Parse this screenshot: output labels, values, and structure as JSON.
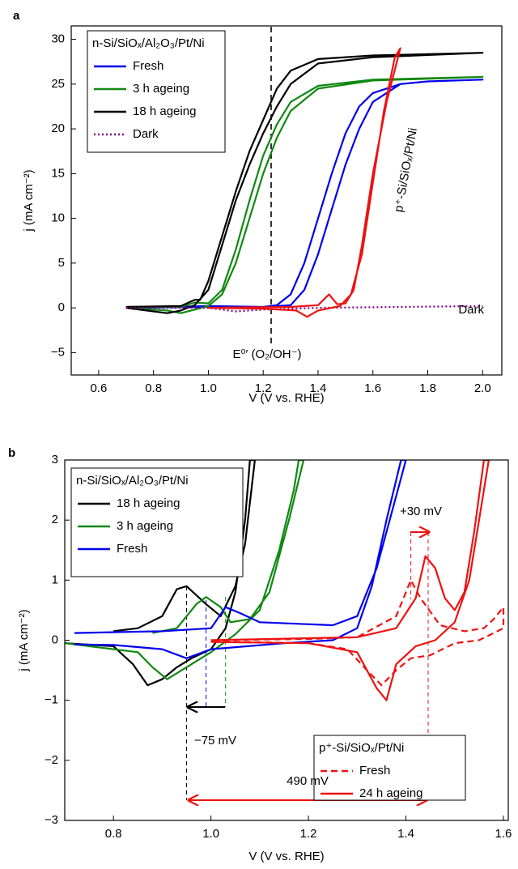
{
  "chart_data": [
    {
      "type": "line",
      "panel_label": "a",
      "x_label": "V (V vs. RHE)",
      "y_label": "j (mA cm⁻²)",
      "xlim": [
        0.5,
        2.07
      ],
      "ylim": [
        -7.5,
        31.5
      ],
      "xticks": [
        0.6,
        0.8,
        {
          "value": 1,
          "label": "1.0"
        },
        1.2,
        1.4,
        1.6,
        1.8,
        {
          "value": 2,
          "label": "2.0"
        }
      ],
      "yticks": [
        {
          "value": -5,
          "label": "−5"
        },
        0,
        5,
        10,
        15,
        20,
        25,
        30
      ],
      "legends": [
        {
          "title": "n-Si/SiOₓ/Al₂O₃/Pt/Ni",
          "corner": "upper left"
        }
      ],
      "annotations": [
        {
          "text": "Dark",
          "color": "#800080"
        },
        {
          "text": "E⁰′ (O₂/OH⁻)",
          "color": "#000000"
        }
      ],
      "series": [
        {
          "name": "Fresh",
          "color": "#0000ee",
          "dash": "solid",
          "legend": 0,
          "x": [
            0.7,
            1.0,
            1.2,
            1.3,
            1.35,
            1.4,
            1.45,
            1.5,
            1.55,
            1.6,
            1.7,
            1.8,
            2.0,
            1.8,
            1.7,
            1.6,
            1.55,
            1.5,
            1.45,
            1.4,
            1.35,
            1.3,
            1.25,
            1.2,
            1.0,
            0.7
          ],
          "values": [
            0,
            0.1,
            0.1,
            0.3,
            2,
            6,
            11,
            16,
            20,
            23,
            25,
            25.3,
            25.5,
            25.3,
            25,
            24,
            22.5,
            19.5,
            15,
            10,
            5,
            1.5,
            0.3,
            0.1,
            0.2,
            0
          ]
        },
        {
          "name": "3 h ageing",
          "color": "#118811",
          "dash": "solid",
          "legend": 0,
          "x": [
            0.7,
            0.85,
            0.9,
            0.95,
            1.0,
            1.05,
            1.1,
            1.15,
            1.2,
            1.25,
            1.3,
            1.4,
            1.6,
            2.0,
            1.6,
            1.4,
            1.3,
            1.25,
            1.2,
            1.15,
            1.1,
            1.05,
            1.0,
            0.95,
            0.9,
            0.7
          ],
          "values": [
            0,
            -0.3,
            -0.6,
            -0.2,
            0.2,
            1.5,
            5,
            10,
            15,
            19,
            22,
            24.5,
            25.4,
            25.8,
            25.5,
            24.8,
            23,
            20.5,
            17,
            12,
            6.5,
            2,
            0.5,
            0.6,
            0.1,
            0.1
          ]
        },
        {
          "name": "18 h ageing",
          "color": "#000000",
          "dash": "solid",
          "legend": 0,
          "x": [
            0.7,
            0.85,
            0.9,
            0.95,
            1.0,
            1.05,
            1.1,
            1.15,
            1.2,
            1.25,
            1.3,
            1.4,
            1.6,
            2.0,
            1.6,
            1.4,
            1.3,
            1.25,
            1.2,
            1.15,
            1.1,
            1.05,
            1.0,
            0.97,
            0.95,
            0.9,
            0.7
          ],
          "values": [
            0,
            -0.6,
            -0.3,
            0.3,
            2,
            7,
            12,
            16,
            19.5,
            22.5,
            25,
            27.3,
            28,
            28.5,
            28.2,
            27.8,
            26.5,
            24.5,
            21,
            17.5,
            13,
            8,
            3,
            0.9,
            0.9,
            0.2,
            0.1
          ]
        },
        {
          "name": "Dark",
          "color": "#800080",
          "dash": "dotted",
          "legend": 0,
          "x": [
            0.7,
            1.0,
            1.1,
            1.2,
            1.4,
            2.0
          ],
          "values": [
            0,
            0,
            -0.4,
            -0.2,
            0,
            0.2
          ]
        },
        {
          "name": "p⁺-Si/SiOₓ/Pt/Ni",
          "color": "#ee1111",
          "dash": "solid",
          "legend": null,
          "x": [
            1.0,
            1.3,
            1.4,
            1.44,
            1.47,
            1.5,
            1.53,
            1.56,
            1.6,
            1.65,
            1.7,
            1.68,
            1.64,
            1.6,
            1.56,
            1.52,
            1.48,
            1.4,
            1.36,
            1.32,
            1.2,
            1.0
          ],
          "values": [
            0,
            0.1,
            0.3,
            1.5,
            0.4,
            0.5,
            2,
            7,
            15,
            23,
            29,
            28,
            22,
            14,
            6,
            1.5,
            0.2,
            -0.3,
            -1,
            -0.3,
            -0.1,
            0
          ]
        }
      ]
    },
    {
      "type": "line",
      "panel_label": "b",
      "x_label": "V (V vs. RHE)",
      "y_label": "j (mA cm⁻²)",
      "xlim": [
        0.7,
        1.61
      ],
      "ylim": [
        -3,
        3
      ],
      "xticks": [
        0.8,
        {
          "value": 1,
          "label": "1.0"
        },
        1.2,
        1.4,
        1.6
      ],
      "yticks": [
        {
          "value": -3,
          "label": "−3"
        },
        {
          "value": -2,
          "label": "−2"
        },
        {
          "value": -1,
          "label": "−1"
        },
        0,
        1,
        2,
        3
      ],
      "legends": [
        {
          "title": "n-Si/SiOₓ/Al₂O₃/Pt/Ni",
          "corner": "upper left"
        },
        {
          "title": "p⁺-Si/SiOₓ/Pt/Ni",
          "corner": "lower right"
        }
      ],
      "annotations": [
        {
          "text": "+30 mV",
          "color": "#ee1111"
        },
        {
          "text": "−75 mV",
          "color": "#000000"
        },
        {
          "text": "490 mV",
          "color": "#ee1111"
        }
      ],
      "series": [
        {
          "name": "18 h ageing",
          "color": "#000000",
          "dash": "solid",
          "legend": 0,
          "x": [
            0.7,
            0.8,
            0.84,
            0.87,
            0.9,
            0.93,
            0.96,
            1.0,
            1.03,
            1.05,
            1.07,
            1.08,
            1.09,
            1.07,
            1.05,
            1.02,
            0.99,
            0.95,
            0.93,
            0.9,
            0.85,
            0.8
          ],
          "values": [
            -0.05,
            -0.1,
            -0.4,
            -0.75,
            -0.65,
            -0.45,
            -0.3,
            -0.15,
            0.2,
            0.8,
            2,
            3,
            3,
            1.6,
            0.9,
            0.4,
            0.6,
            0.9,
            0.85,
            0.4,
            0.2,
            0.15
          ]
        },
        {
          "name": "3 h ageing",
          "color": "#118811",
          "dash": "solid",
          "legend": 0,
          "x": [
            0.7,
            0.85,
            0.88,
            0.91,
            0.94,
            1.0,
            1.05,
            1.1,
            1.14,
            1.17,
            1.18,
            1.19,
            1.16,
            1.12,
            1.08,
            1.04,
            1.02,
            0.99,
            0.97,
            0.93,
            0.88
          ],
          "values": [
            -0.05,
            -0.2,
            -0.45,
            -0.65,
            -0.5,
            -0.2,
            0.1,
            0.5,
            1.5,
            2.5,
            3,
            3,
            2,
            0.8,
            0.35,
            0.3,
            0.55,
            0.72,
            0.6,
            0.2,
            0.12
          ]
        },
        {
          "name": "Fresh",
          "color": "#0000ee",
          "dash": "solid",
          "legend": 0,
          "x": [
            0.72,
            0.9,
            1.0,
            1.03,
            1.06,
            1.1,
            1.25,
            1.3,
            1.34,
            1.38,
            1.4,
            1.39,
            1.36,
            1.33,
            1.3,
            1.25,
            1.15,
            1.0,
            0.95,
            0.9,
            0.8,
            0.72
          ],
          "values": [
            0.12,
            0.15,
            0.2,
            0.55,
            0.45,
            0.3,
            0.25,
            0.4,
            1.2,
            2.4,
            3,
            3,
            2,
            0.9,
            0.2,
            0,
            -0.05,
            -0.15,
            -0.3,
            -0.15,
            -0.08,
            -0.07
          ]
        },
        {
          "name": "Fresh",
          "color": "#ee1111",
          "dash": "dashed",
          "legend": 1,
          "x": [
            1.0,
            1.2,
            1.3,
            1.38,
            1.41,
            1.43,
            1.47,
            1.52,
            1.56,
            1.58,
            1.6,
            1.6,
            1.55,
            1.5,
            1.45,
            1.41,
            1.38,
            1.35,
            1.32,
            1.28,
            1.2,
            1.0
          ],
          "values": [
            0,
            0.02,
            0.05,
            0.4,
            1,
            0.7,
            0.25,
            0.15,
            0.2,
            0.35,
            0.55,
            0.2,
            0,
            -0.05,
            -0.25,
            -0.3,
            -0.5,
            -0.75,
            -0.5,
            -0.15,
            -0.05,
            -0.02
          ]
        },
        {
          "name": "24 h ageing",
          "color": "#ee1111",
          "dash": "solid",
          "legend": 1,
          "x": [
            1.0,
            1.3,
            1.38,
            1.42,
            1.44,
            1.46,
            1.48,
            1.5,
            1.52,
            1.54,
            1.56,
            1.57,
            1.55,
            1.53,
            1.5,
            1.46,
            1.42,
            1.38,
            1.36,
            1.34,
            1.3,
            1.2,
            1.0
          ],
          "values": [
            0,
            0.05,
            0.2,
            0.7,
            1.4,
            1.2,
            0.7,
            0.5,
            0.8,
            1.8,
            3,
            3,
            2,
            1,
            0.3,
            0,
            -0.1,
            -0.4,
            -1,
            -0.8,
            -0.2,
            -0.05,
            -0.03
          ]
        }
      ]
    }
  ]
}
